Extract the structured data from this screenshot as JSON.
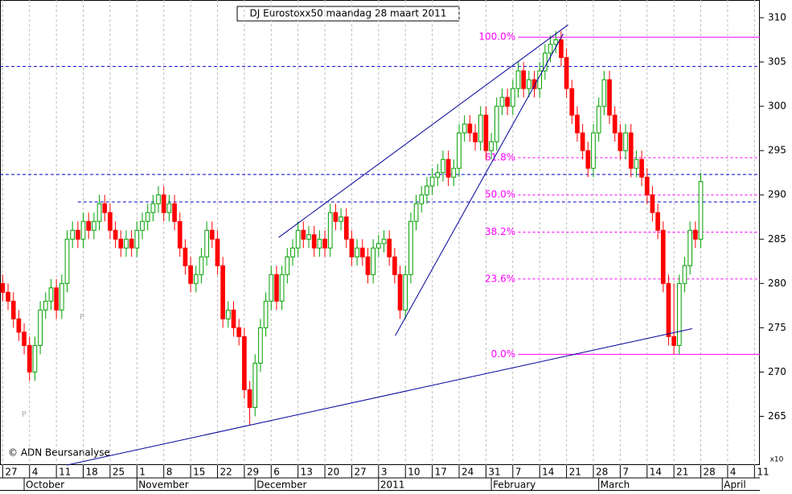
{
  "chart_data": {
    "type": "candlestick",
    "title": "DJ Eurostoxx50 maandag 28 maart 2011",
    "source": "© ADN Beursanalyse",
    "scale_label": "x10",
    "ylim": [
      259.5,
      312
    ],
    "yticks": [
      265,
      270,
      275,
      280,
      285,
      290,
      295,
      300,
      305,
      310
    ],
    "xlim": [
      -0.5,
      141
    ],
    "xticks": [
      {
        "value": 0,
        "label": "27"
      },
      {
        "value": 5,
        "label": "4"
      },
      {
        "value": 10,
        "label": "11"
      },
      {
        "value": 15,
        "label": "18"
      },
      {
        "value": 20,
        "label": "25"
      },
      {
        "value": 25,
        "label": "1"
      },
      {
        "value": 30,
        "label": "8"
      },
      {
        "value": 35,
        "label": "15"
      },
      {
        "value": 40,
        "label": "22"
      },
      {
        "value": 45,
        "label": "29"
      },
      {
        "value": 50,
        "label": "6"
      },
      {
        "value": 55,
        "label": "13"
      },
      {
        "value": 60,
        "label": "20"
      },
      {
        "value": 65,
        "label": "27"
      },
      {
        "value": 70,
        "label": "3"
      },
      {
        "value": 75,
        "label": "10"
      },
      {
        "value": 80,
        "label": "17"
      },
      {
        "value": 85,
        "label": "24"
      },
      {
        "value": 90,
        "label": "31"
      },
      {
        "value": 95,
        "label": "7"
      },
      {
        "value": 100,
        "label": "14"
      },
      {
        "value": 105,
        "label": "21"
      },
      {
        "value": 110,
        "label": "28"
      },
      {
        "value": 115,
        "label": "7"
      },
      {
        "value": 120,
        "label": "14"
      },
      {
        "value": 125,
        "label": "21"
      },
      {
        "value": 130,
        "label": "28"
      },
      {
        "value": 135,
        "label": "4"
      },
      {
        "value": 140,
        "label": "11"
      }
    ],
    "months": [
      {
        "value": 4,
        "label": "October"
      },
      {
        "value": 25,
        "label": "November"
      },
      {
        "value": 47,
        "label": "December"
      },
      {
        "value": 70,
        "label": "2011"
      },
      {
        "value": 91,
        "label": "February"
      },
      {
        "value": 111,
        "label": "March"
      },
      {
        "value": 134,
        "label": "April"
      }
    ],
    "up_color": "#00a000",
    "down_color": "#ff0000",
    "open": [
      280,
      279,
      278,
      276,
      274.5,
      273,
      270,
      273,
      277,
      278,
      279.5,
      277,
      280,
      285,
      286,
      285,
      287,
      286,
      287,
      289,
      288,
      286,
      285,
      284,
      285,
      284,
      286,
      287,
      288,
      289,
      290,
      288,
      289,
      287,
      284,
      282,
      280,
      281,
      283,
      286,
      285,
      282,
      276,
      277,
      275,
      274,
      268,
      266,
      271,
      275,
      278,
      281,
      278,
      281,
      283,
      284,
      286,
      285,
      285.5,
      284,
      285,
      284,
      288,
      287,
      287.5,
      285,
      283,
      284,
      283,
      281,
      284,
      284.5,
      285,
      283,
      281,
      277,
      281,
      287,
      289,
      290,
      291,
      292,
      292.5,
      294,
      292,
      293,
      297,
      298,
      297,
      296,
      299,
      295,
      296,
      300,
      301,
      300,
      302,
      304,
      302,
      303,
      302,
      304,
      306,
      307,
      307.5,
      305.5,
      302,
      299,
      297,
      295,
      293,
      297,
      300,
      303,
      299,
      297,
      295,
      297,
      293,
      294,
      292,
      290,
      288,
      286,
      280,
      274,
      273,
      280,
      282,
      286,
      285
    ],
    "high": [
      281,
      280,
      279,
      277,
      275.5,
      274,
      274,
      278,
      279,
      280.5,
      280.5,
      281,
      286,
      287,
      287,
      288,
      288,
      288,
      290,
      290,
      289,
      287,
      286,
      286,
      286,
      287,
      288,
      289,
      290,
      291,
      291,
      290,
      290,
      288,
      285,
      283,
      282,
      284,
      287,
      287,
      286,
      283,
      278,
      278,
      276,
      275,
      269,
      272,
      276,
      279,
      282,
      282,
      282,
      284,
      285,
      287,
      287,
      286.5,
      286.5,
      286,
      286,
      289,
      289,
      288.5,
      288.5,
      286,
      285,
      285,
      284,
      285,
      285.5,
      286,
      286,
      284,
      282,
      282,
      288,
      290,
      291,
      292,
      293,
      293.5,
      295,
      295,
      294,
      298,
      299,
      299,
      298,
      300,
      300,
      297,
      301,
      302,
      302,
      303,
      305,
      305,
      304,
      304,
      305,
      307,
      308,
      308.5,
      308.5,
      306.5,
      303,
      300,
      298,
      296,
      298,
      301,
      304,
      304,
      300,
      298,
      298,
      298,
      295,
      295,
      293,
      291,
      289,
      287,
      281,
      280,
      281,
      283,
      287,
      287,
      292.5
    ],
    "low": [
      278,
      277,
      275,
      273.5,
      272,
      269,
      269,
      272,
      276,
      277,
      276,
      276,
      279,
      284,
      284,
      284,
      285,
      285,
      286,
      287,
      285,
      284,
      283,
      283,
      283,
      283,
      285,
      286,
      287,
      288,
      287,
      287,
      286,
      283,
      281,
      279,
      279,
      280,
      282,
      284,
      281,
      275,
      275,
      274,
      273,
      267,
      264,
      265,
      270,
      274,
      277,
      277,
      277,
      280,
      282,
      283,
      284,
      284,
      283,
      283,
      283,
      283,
      286,
      286,
      284,
      282,
      282,
      282,
      280,
      280,
      283,
      283.5,
      282,
      280,
      276,
      276,
      280,
      286,
      288,
      289,
      290,
      291,
      291.5,
      291,
      291,
      292,
      296,
      296,
      295,
      295,
      294,
      294,
      295,
      299,
      299,
      299,
      301,
      301,
      301,
      301,
      301,
      303,
      305,
      306,
      304.5,
      301,
      298,
      296,
      294,
      292,
      292,
      296,
      299,
      298,
      296,
      294,
      294,
      292,
      292,
      291,
      289,
      287,
      285,
      279,
      273,
      272,
      272,
      279,
      281,
      284,
      284
    ],
    "close": [
      279,
      278,
      276,
      274.5,
      273,
      270,
      273,
      277,
      278,
      279.5,
      277,
      280,
      285,
      286,
      285,
      287,
      286,
      287,
      289,
      288,
      286,
      285,
      284,
      285,
      284,
      286,
      287,
      288,
      289,
      290,
      288,
      289,
      287,
      284,
      282,
      280,
      281,
      283,
      286,
      285,
      282,
      276,
      277,
      275,
      274,
      268,
      266,
      271,
      275,
      278,
      281,
      278,
      281,
      283,
      284,
      286,
      285,
      285.5,
      284,
      285,
      284,
      288,
      287,
      287.5,
      285,
      283,
      284,
      283,
      281,
      284,
      284.5,
      285,
      283,
      281,
      277,
      281,
      287,
      289,
      290,
      291,
      292,
      292.5,
      294,
      292,
      293,
      297,
      298,
      297,
      296,
      299,
      295,
      296,
      300,
      301,
      300,
      302,
      304,
      302,
      303,
      302,
      304,
      306,
      307,
      307.5,
      305.5,
      302,
      299,
      297,
      295,
      293,
      297,
      300,
      303,
      299,
      297,
      295,
      297,
      293,
      294,
      292,
      290,
      288,
      286,
      280,
      274,
      273,
      280,
      282,
      286,
      285,
      291.5
    ],
    "fib_color": "#ff00ff",
    "fib_levels": [
      {
        "value": 307.8,
        "label": "100.0%"
      },
      {
        "value": 294.2,
        "label": "61.8%"
      },
      {
        "value": 290,
        "label": "50.0%"
      },
      {
        "value": 285.8,
        "label": "38.2%"
      },
      {
        "value": 280.5,
        "label": "23.6%"
      },
      {
        "value": 272,
        "label": "0.0%"
      }
    ],
    "hlines": [
      304.5,
      292.3,
      289.2
    ],
    "trend_color": "#000099",
    "trend_lines": [
      {
        "x": [
          12,
          128.4
        ],
        "y": [
          259.5,
          274.9
        ]
      },
      {
        "x": [
          51.4,
          105.3
        ],
        "y": [
          285.2,
          309.2
        ]
      },
      {
        "x": [
          73.1,
          104.4
        ],
        "y": [
          274.1,
          308.2
        ]
      }
    ],
    "markers": [
      {
        "text": "P",
        "x": 14.3,
        "y": 276.2
      },
      {
        "text": "P",
        "x": 3.5,
        "y": 265.2
      }
    ]
  }
}
